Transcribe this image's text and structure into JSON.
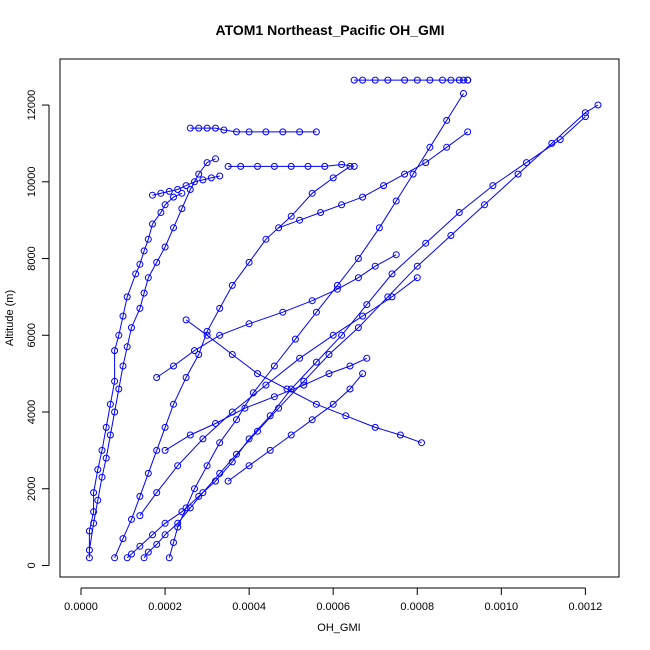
{
  "chart_data": {
    "type": "line",
    "title": "ATOM1 Northeast_Pacific OH_GMI",
    "xlabel": "OH_GMI",
    "ylabel": "Altitude (m)",
    "xlim": [
      -5e-05,
      0.00128
    ],
    "ylim": [
      -300,
      13200
    ],
    "xticks": [
      0.0,
      0.0002,
      0.0004,
      0.0006,
      0.0008,
      0.001,
      0.0012
    ],
    "xtick_labels": [
      "0.0000",
      "0.0002",
      "0.0004",
      "0.0006",
      "0.0008",
      "0.0010",
      "0.0012"
    ],
    "yticks": [
      0,
      2000,
      4000,
      6000,
      8000,
      10000,
      12000
    ],
    "ytick_labels": [
      "0",
      "2000",
      "4000",
      "6000",
      "8000",
      "10000",
      "12000"
    ],
    "grid": false,
    "series_color": "#0000ff",
    "marker": "open-circle",
    "series": [
      {
        "x": [
          2e-05,
          2e-05,
          3e-05,
          3e-05,
          4e-05,
          5e-05,
          6e-05,
          7e-05,
          8e-05,
          8e-05,
          9e-05,
          0.0001,
          0.00011,
          0.00013,
          0.00014,
          0.00015,
          0.00016,
          0.00017,
          0.00019,
          0.0002,
          0.00022,
          0.00024
        ],
        "y": [
          200,
          900,
          1400,
          1900,
          2500,
          3000,
          3600,
          4200,
          4800,
          5600,
          6000,
          6500,
          7000,
          7600,
          7850,
          8200,
          8500,
          8900,
          9200,
          9400,
          9600,
          9700
        ]
      },
      {
        "x": [
          2e-05,
          3e-05,
          4e-05,
          5e-05,
          6e-05,
          7e-05,
          8e-05,
          9e-05,
          0.0001,
          0.00011,
          0.00012,
          0.00014,
          0.00015,
          0.00016,
          0.00018,
          0.0002,
          0.00022,
          0.00024,
          0.00026,
          0.00028,
          0.0003,
          0.00032
        ],
        "y": [
          400,
          1100,
          1700,
          2300,
          2800,
          3400,
          4000,
          4600,
          5200,
          5700,
          6200,
          6700,
          7100,
          7500,
          7900,
          8300,
          8800,
          9300,
          9800,
          10200,
          10500,
          10600
        ]
      },
      {
        "x": [
          8e-05,
          0.0001,
          0.00012,
          0.00014,
          0.00016,
          0.00018,
          0.0002,
          0.00022,
          0.00025,
          0.00028,
          0.0003,
          0.00033,
          0.00036,
          0.0004,
          0.00044,
          0.0005,
          0.00055,
          0.0006,
          0.00064
        ],
        "y": [
          200,
          700,
          1200,
          1800,
          2400,
          3000,
          3600,
          4200,
          4900,
          5500,
          6100,
          6700,
          7300,
          7900,
          8500,
          9100,
          9700,
          10100,
          10400
        ]
      },
      {
        "x": [
          0.00011,
          0.00012,
          0.00014,
          0.00017,
          0.0002,
          0.00024,
          0.00028,
          0.00032,
          0.00036,
          0.0004,
          0.00045,
          0.0005,
          0.00056,
          0.00062,
          0.00068,
          0.00074,
          0.00082,
          0.0009,
          0.00098,
          0.00106,
          0.00114,
          0.0012
        ],
        "y": [
          200,
          300,
          500,
          800,
          1100,
          1400,
          1800,
          2200,
          2700,
          3300,
          3900,
          4600,
          5300,
          6000,
          6800,
          7600,
          8400,
          9200,
          9900,
          10500,
          11100,
          11700
        ]
      },
      {
        "x": [
          0.00015,
          0.00016,
          0.00018,
          0.0002,
          0.00023,
          0.00026,
          0.00029,
          0.00033,
          0.00037,
          0.00042,
          0.00047,
          0.00053,
          0.00059,
          0.00066,
          0.00073,
          0.0008,
          0.00088,
          0.00096,
          0.00104,
          0.00112,
          0.0012,
          0.00123
        ],
        "y": [
          200,
          350,
          550,
          800,
          1100,
          1500,
          1900,
          2400,
          2900,
          3500,
          4100,
          4800,
          5500,
          6200,
          7000,
          7800,
          8600,
          9400,
          10200,
          11000,
          11800,
          12000
        ]
      },
      {
        "x": [
          0.00021,
          0.00022,
          0.00023,
          0.00025,
          0.00027,
          0.0003,
          0.00033,
          0.00037,
          0.00041,
          0.00046,
          0.00051,
          0.00056,
          0.00061,
          0.00066,
          0.00071,
          0.00075,
          0.00079,
          0.00083,
          0.00087,
          0.00091
        ],
        "y": [
          200,
          600,
          1000,
          1500,
          2000,
          2600,
          3200,
          3800,
          4500,
          5200,
          5900,
          6600,
          7300,
          8000,
          8800,
          9500,
          10200,
          10900,
          11600,
          12300
        ]
      },
      {
        "x": [
          0.00014,
          0.00018,
          0.00023,
          0.00029,
          0.00036,
          0.00044,
          0.00052,
          0.0006,
          0.00067,
          0.00074,
          0.0008
        ],
        "y": [
          1300,
          1900,
          2600,
          3300,
          4000,
          4700,
          5400,
          6000,
          6500,
          7000,
          7500
        ]
      },
      {
        "x": [
          0.00025,
          0.0003,
          0.00036,
          0.00042,
          0.00049,
          0.00056,
          0.00063,
          0.0007,
          0.00076,
          0.00081
        ],
        "y": [
          6400,
          6000,
          5500,
          5000,
          4600,
          4200,
          3900,
          3600,
          3400,
          3200
        ]
      },
      {
        "x": [
          0.00018,
          0.00022,
          0.00027,
          0.00033,
          0.0004,
          0.00048,
          0.00055,
          0.00061,
          0.00066,
          0.0007,
          0.00075
        ],
        "y": [
          4900,
          5200,
          5600,
          6000,
          6300,
          6600,
          6900,
          7200,
          7500,
          7800,
          8100
        ]
      },
      {
        "x": [
          0.0002,
          0.00026,
          0.00032,
          0.00039,
          0.00046,
          0.00053,
          0.00059,
          0.00064,
          0.00068
        ],
        "y": [
          3000,
          3400,
          3700,
          4100,
          4400,
          4700,
          5000,
          5200,
          5400
        ]
      },
      {
        "x": [
          0.00035,
          0.0004,
          0.00045,
          0.0005,
          0.00055,
          0.0006,
          0.00064,
          0.00067
        ],
        "y": [
          2200,
          2600,
          3000,
          3400,
          3800,
          4200,
          4600,
          5000
        ]
      },
      {
        "x": [
          0.00065,
          0.00067,
          0.0007,
          0.00073,
          0.00077,
          0.0008,
          0.00083,
          0.00086,
          0.00088,
          0.0009,
          0.00091,
          0.00092,
          0.00092
        ],
        "y": [
          12650,
          12650,
          12650,
          12650,
          12650,
          12650,
          12650,
          12650,
          12650,
          12650,
          12650,
          12650,
          12650
        ]
      },
      {
        "x": [
          0.00026,
          0.00028,
          0.0003,
          0.00032,
          0.00034,
          0.00037,
          0.0004,
          0.00044,
          0.00048,
          0.00052,
          0.00056
        ],
        "y": [
          11400,
          11400,
          11400,
          11400,
          11350,
          11300,
          11300,
          11300,
          11300,
          11300,
          11300
        ]
      },
      {
        "x": [
          0.00035,
          0.00038,
          0.00042,
          0.00046,
          0.0005,
          0.00054,
          0.00058,
          0.00062,
          0.00065
        ],
        "y": [
          10400,
          10400,
          10400,
          10400,
          10400,
          10400,
          10400,
          10450,
          10400
        ]
      },
      {
        "x": [
          0.00047,
          0.00052,
          0.00057,
          0.00062,
          0.00067,
          0.00072,
          0.00077,
          0.00082,
          0.00087,
          0.00092
        ],
        "y": [
          8800,
          9000,
          9200,
          9400,
          9600,
          9900,
          10200,
          10500,
          10900,
          11300
        ]
      },
      {
        "x": [
          0.00017,
          0.00019,
          0.00021,
          0.00023,
          0.00025,
          0.00027,
          0.00029,
          0.00031,
          0.00033
        ],
        "y": [
          9650,
          9700,
          9750,
          9800,
          9900,
          10000,
          10050,
          10100,
          10150
        ]
      }
    ]
  }
}
